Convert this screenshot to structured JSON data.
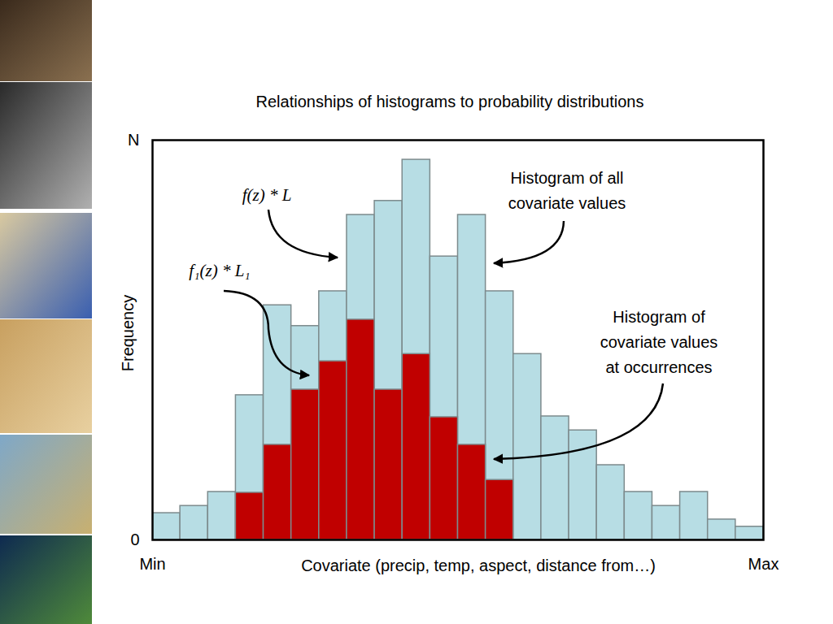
{
  "chart_data": {
    "type": "histogram",
    "title": "Relationships of histograms to probability distributions",
    "x_label": "Covariate (precip, temp, aspect, distance from…)",
    "y_label": "Frequency",
    "bins": [
      0,
      1,
      2,
      3,
      4,
      5,
      6,
      7,
      8,
      9,
      10,
      11,
      12,
      13,
      14,
      15,
      16,
      17,
      18,
      19,
      20,
      21,
      22
    ],
    "series": [
      {
        "name": "Histogram of all covariate values",
        "color": "#b7dde4",
        "values": [
          6.7,
          8.5,
          12,
          36.2,
          58.7,
          53.5,
          62.2,
          81.3,
          84.8,
          95.1,
          70.9,
          81.3,
          62.2,
          46.5,
          30.9,
          27.4,
          18.7,
          12,
          8.5,
          12,
          5.1,
          3.3
        ]
      },
      {
        "name": "Histogram of covariate values at occurrences",
        "color": "#c00000",
        "values": [
          0,
          0,
          0,
          11.8,
          23.8,
          37.6,
          44.7,
          55.1,
          37.6,
          46.5,
          30.7,
          23.8,
          15,
          0,
          0,
          0,
          0,
          0,
          0,
          0,
          0,
          0
        ]
      }
    ],
    "annotations": [
      {
        "text": "f(z) * L"
      },
      {
        "text": "f₁(z) * L₁"
      }
    ],
    "xlim": [
      0,
      22
    ],
    "xticks": [
      {
        "value": 0,
        "label": "Min"
      },
      {
        "value": 22,
        "label": "Max"
      }
    ],
    "ylim": [
      0,
      100
    ],
    "yticks": [
      0,
      {
        "value": 100,
        "label": "N"
      }
    ],
    "stacked": false,
    "grid": false
  }
}
